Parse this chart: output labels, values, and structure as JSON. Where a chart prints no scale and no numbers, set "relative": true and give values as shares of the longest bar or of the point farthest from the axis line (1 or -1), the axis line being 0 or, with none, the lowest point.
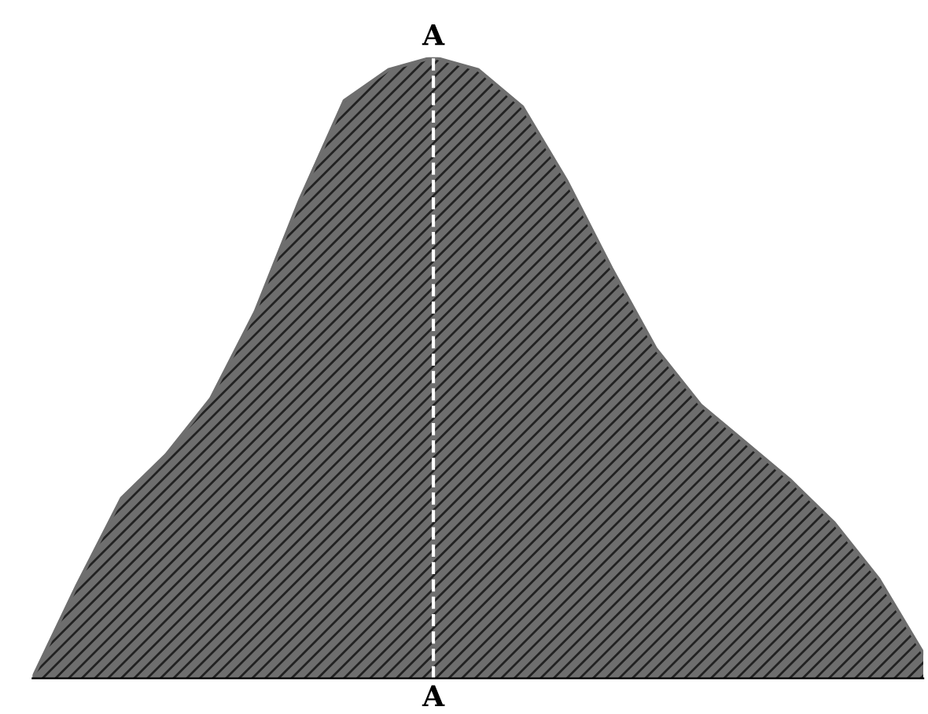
{
  "chart_data": {
    "type": "area",
    "relative": true,
    "color": "#6e6e6e",
    "categories": [
      null,
      null,
      null,
      null,
      null,
      null,
      null,
      null,
      null,
      null,
      null,
      null,
      null,
      null,
      null,
      null,
      null,
      null,
      null,
      null,
      null
    ],
    "values": [
      0,
      0.15,
      0.29,
      0.36,
      0.45,
      0.59,
      0.77,
      0.93,
      0.98,
      1.0,
      0.98,
      0.92,
      0.8,
      0.66,
      0.53,
      0.44,
      0.38,
      0.32,
      0.25,
      0.16,
      0.04
    ],
    "annotations": [
      "A",
      "A"
    ]
  }
}
